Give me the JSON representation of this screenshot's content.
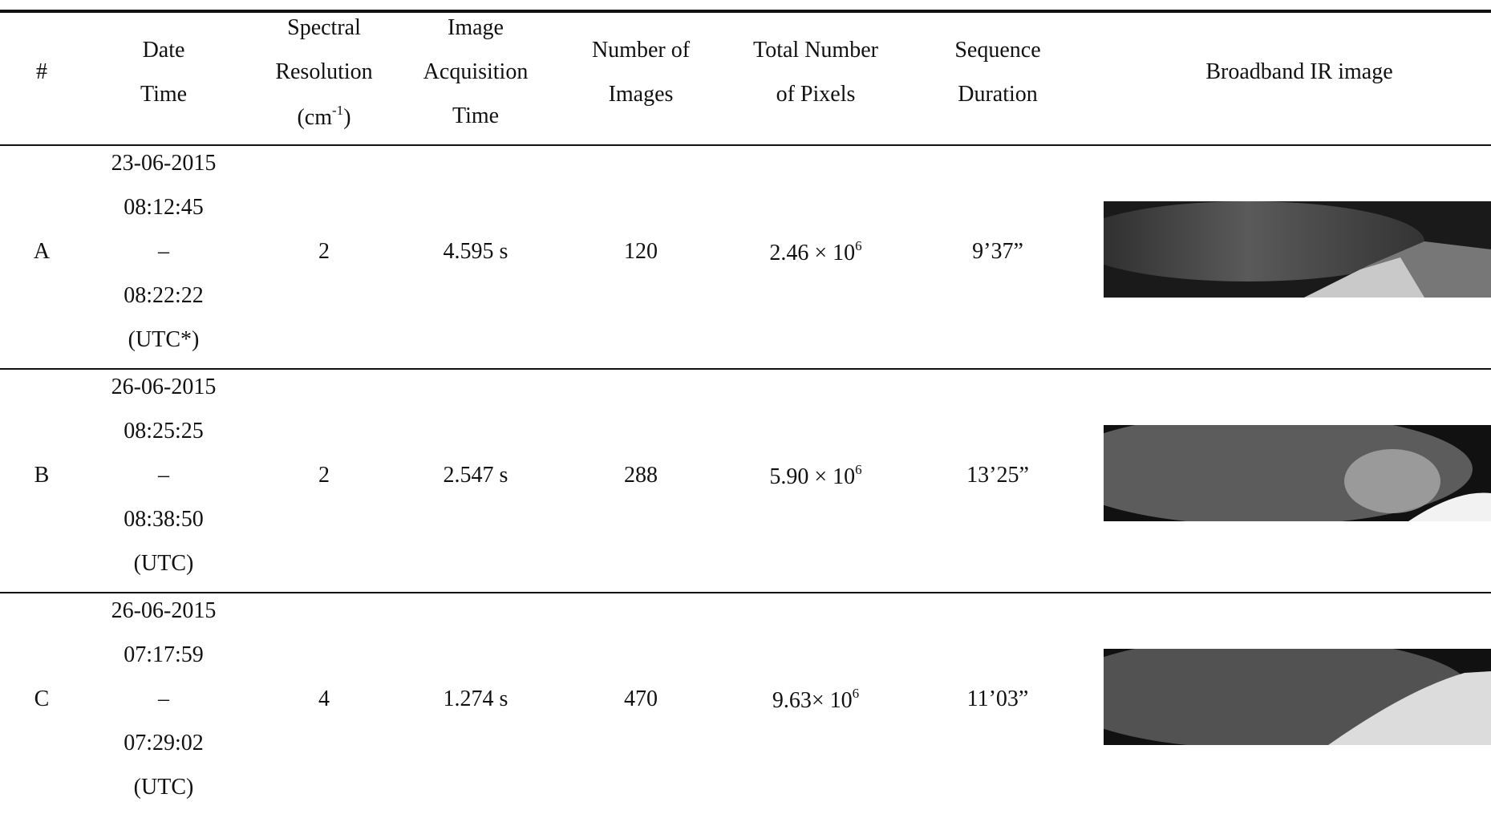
{
  "table": {
    "header": [
      [
        "#"
      ],
      [
        "Date",
        "Time"
      ],
      [
        "Spectral",
        "Resolution",
        {
          "text": "(cm",
          "sup": "-1",
          "tail": ")"
        }
      ],
      [
        "Image",
        "Acquisition",
        "Time"
      ],
      [
        "Number of",
        "Images"
      ],
      [
        "Total Number",
        "of Pixels"
      ],
      [
        "Sequence",
        "Duration"
      ],
      [
        "Broadband IR image"
      ]
    ],
    "rows": [
      {
        "id": "A",
        "date_time": [
          "23-06-2015",
          "08:12:45",
          "–",
          "08:22:22",
          "(UTC*)"
        ],
        "spectral_resolution": "2",
        "acquisition_time": "4.595 s",
        "number_of_images": "120",
        "total_pixels": {
          "text": "2.46 × 10",
          "sup": "6"
        },
        "duration": "9’37”"
      },
      {
        "id": "B",
        "date_time": [
          "26-06-2015",
          "08:25:25",
          "–",
          "08:38:50",
          "(UTC)"
        ],
        "spectral_resolution": "2",
        "acquisition_time": "2.547 s",
        "number_of_images": "288",
        "total_pixels": {
          "text": "5.90 × 10",
          "sup": "6"
        },
        "duration": "13’25”"
      },
      {
        "id": "C",
        "date_time": [
          "26-06-2015",
          "07:17:59",
          "–",
          "07:29:02",
          "(UTC)"
        ],
        "spectral_resolution": "4",
        "acquisition_time": "1.274 s",
        "number_of_images": "470",
        "total_pixels": {
          "text": "9.63× 10",
          "sup": "6"
        },
        "duration": "11’03”"
      }
    ]
  }
}
